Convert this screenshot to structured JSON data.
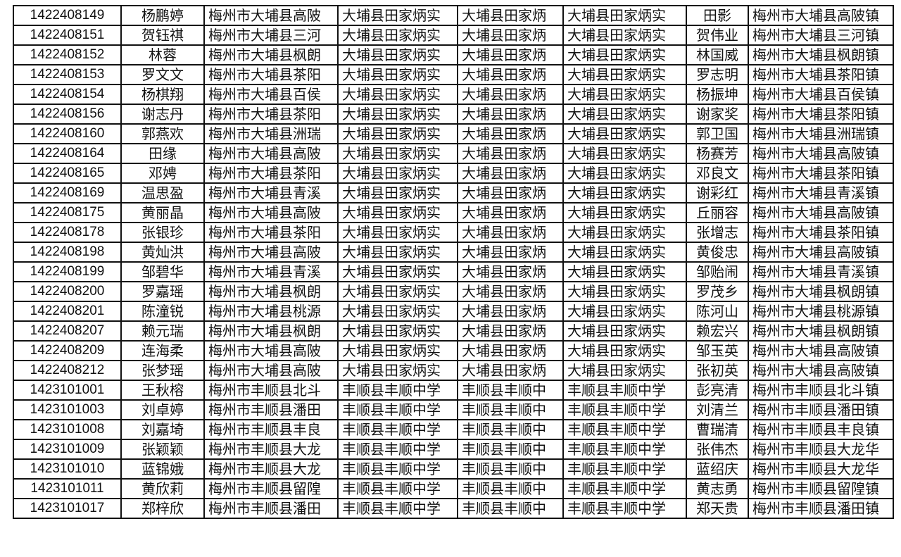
{
  "table": {
    "rows": [
      [
        "1422408149",
        "杨鹏婷",
        "梅州市大埔县高陂",
        "大埔县田家炳实",
        "大埔县田家炳",
        "大埔县田家炳实",
        "田影",
        "梅州市大埔县高陂镇"
      ],
      [
        "1422408151",
        "贺钰祺",
        "梅州市大埔县三河",
        "大埔县田家炳实",
        "大埔县田家炳",
        "大埔县田家炳实",
        "贺伟业",
        "梅州市大埔县三河镇"
      ],
      [
        "1422408152",
        "林蓉",
        "梅州市大埔县枫朗",
        "大埔县田家炳实",
        "大埔县田家炳",
        "大埔县田家炳实",
        "林国威",
        "梅州市大埔县枫朗镇"
      ],
      [
        "1422408153",
        "罗文文",
        "梅州市大埔县茶阳",
        "大埔县田家炳实",
        "大埔县田家炳",
        "大埔县田家炳实",
        "罗志明",
        "梅州市大埔县茶阳镇"
      ],
      [
        "1422408154",
        "杨棋翔",
        "梅州市大埔县百侯",
        "大埔县田家炳实",
        "大埔县田家炳",
        "大埔县田家炳实",
        "杨振坤",
        "梅州市大埔县百侯镇"
      ],
      [
        "1422408156",
        "谢志丹",
        "梅州市大埔县茶阳",
        "大埔县田家炳实",
        "大埔县田家炳",
        "大埔县田家炳实",
        "谢家奖",
        "梅州市大埔县茶阳镇"
      ],
      [
        "1422408160",
        "郭燕欢",
        "梅州市大埔县洲瑞",
        "大埔县田家炳实",
        "大埔县田家炳",
        "大埔县田家炳实",
        "郭卫国",
        "梅州市大埔县洲瑞镇"
      ],
      [
        "1422408164",
        "田缘",
        "梅州市大埔县高陂",
        "大埔县田家炳实",
        "大埔县田家炳",
        "大埔县田家炳实",
        "杨赛芳",
        "梅州市大埔县高陂镇"
      ],
      [
        "1422408165",
        "邓娉",
        "梅州市大埔县茶阳",
        "大埔县田家炳实",
        "大埔县田家炳",
        "大埔县田家炳实",
        "邓良文",
        "梅州市大埔县茶阳镇"
      ],
      [
        "1422408169",
        "温思盈",
        "梅州市大埔县青溪",
        "大埔县田家炳实",
        "大埔县田家炳",
        "大埔县田家炳实",
        "谢彩红",
        "梅州市大埔县青溪镇"
      ],
      [
        "1422408175",
        "黄丽晶",
        "梅州市大埔县高陂",
        "大埔县田家炳实",
        "大埔县田家炳",
        "大埔县田家炳实",
        "丘丽容",
        "梅州市大埔县高陂镇"
      ],
      [
        "1422408178",
        "张银珍",
        "梅州市大埔县茶阳",
        "大埔县田家炳实",
        "大埔县田家炳",
        "大埔县田家炳实",
        "张增志",
        "梅州市大埔县茶阳镇"
      ],
      [
        "1422408198",
        "黄灿洪",
        "梅州市大埔县高陂",
        "大埔县田家炳实",
        "大埔县田家炳",
        "大埔县田家炳实",
        "黄俊忠",
        "梅州市大埔县高陂镇"
      ],
      [
        "1422408199",
        "邹碧华",
        "梅州市大埔县青溪",
        "大埔县田家炳实",
        "大埔县田家炳",
        "大埔县田家炳实",
        "邹贻闹",
        "梅州市大埔县青溪镇"
      ],
      [
        "1422408200",
        "罗嘉瑶",
        "梅州市大埔县枫朗",
        "大埔县田家炳实",
        "大埔县田家炳",
        "大埔县田家炳实",
        "罗茂乡",
        "梅州市大埔县枫朗镇"
      ],
      [
        "1422408201",
        "陈潼锐",
        "梅州市大埔县桃源",
        "大埔县田家炳实",
        "大埔县田家炳",
        "大埔县田家炳实",
        "陈河山",
        "梅州市大埔县桃源镇"
      ],
      [
        "1422408207",
        "赖元瑞",
        "梅州市大埔县枫朗",
        "大埔县田家炳实",
        "大埔县田家炳",
        "大埔县田家炳实",
        "赖宏兴",
        "梅州市大埔县枫朗镇"
      ],
      [
        "1422408209",
        "连海柔",
        "梅州市大埔县高陂",
        "大埔县田家炳实",
        "大埔县田家炳",
        "大埔县田家炳实",
        "邹玉英",
        "梅州市大埔县高陂镇"
      ],
      [
        "1422408212",
        "张梦瑶",
        "梅州市大埔县高陂",
        "大埔县田家炳实",
        "大埔县田家炳",
        "大埔县田家炳实",
        "张初英",
        "梅州市大埔县高陂镇"
      ],
      [
        "1423101001",
        "王秋榕",
        "梅州市丰顺县北斗",
        "丰顺县丰顺中学",
        "丰顺县丰顺中",
        "丰顺县丰顺中学",
        "彭亮清",
        "梅州市丰顺县北斗镇"
      ],
      [
        "1423101003",
        "刘卓婷",
        "梅州市丰顺县潘田",
        "丰顺县丰顺中学",
        "丰顺县丰顺中",
        "丰顺县丰顺中学",
        "刘清兰",
        "梅州市丰顺县潘田镇"
      ],
      [
        "1423101008",
        "刘嘉埼",
        "梅州市丰顺县丰良",
        "丰顺县丰顺中学",
        "丰顺县丰顺中",
        "丰顺县丰顺中学",
        "曹瑞清",
        "梅州市丰顺县丰良镇"
      ],
      [
        "1423101009",
        "张颖颖",
        "梅州市丰顺县大龙",
        "丰顺县丰顺中学",
        "丰顺县丰顺中",
        "丰顺县丰顺中学",
        "张伟杰",
        "梅州市丰顺县大龙华"
      ],
      [
        "1423101010",
        "蓝锦娥",
        "梅州市丰顺县大龙",
        "丰顺县丰顺中学",
        "丰顺县丰顺中",
        "丰顺县丰顺中学",
        "蓝绍庆",
        "梅州市丰顺县大龙华"
      ],
      [
        "1423101011",
        "黄欣莉",
        "梅州市丰顺县留隍",
        "丰顺县丰顺中学",
        "丰顺县丰顺中",
        "丰顺县丰顺中学",
        "黄志勇",
        "梅州市丰顺县留隍镇"
      ],
      [
        "1423101017",
        "郑梓欣",
        "梅州市丰顺县潘田",
        "丰顺县丰顺中学",
        "丰顺县丰顺中",
        "丰顺县丰顺中学",
        "郑天贵",
        "梅州市丰顺县潘田镇"
      ]
    ]
  }
}
